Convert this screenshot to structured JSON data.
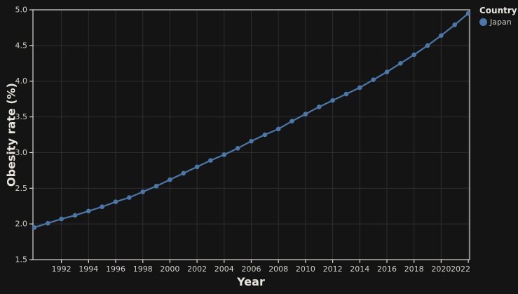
{
  "colors": {
    "background": "#141414",
    "grid": "#2e2e2e",
    "spine": "#dcd8d3",
    "tick_text": "#d2cfca",
    "label_text": "#e8e4de",
    "series_blue": "#4b77a9"
  },
  "chart_data": {
    "type": "line",
    "title": "",
    "xlabel": "Year",
    "ylabel": "Obesity rate (%)",
    "xlim": [
      1989.9,
      2022.1
    ],
    "ylim": [
      1.5,
      5.0
    ],
    "xticks": [
      1992,
      1994,
      1996,
      1998,
      2000,
      2002,
      2004,
      2006,
      2008,
      2010,
      2012,
      2014,
      2016,
      2018,
      2020,
      2022
    ],
    "yticks": [
      1.5,
      2.0,
      2.5,
      3.0,
      3.5,
      4.0,
      4.5,
      5.0
    ],
    "grid": true,
    "legend": {
      "title": "Country",
      "position": "top-right",
      "entries": [
        {
          "label": "Japan",
          "color": "#4b77a9"
        }
      ]
    },
    "series": [
      {
        "name": "Japan",
        "marker": "circle",
        "x": [
          1990,
          1991,
          1992,
          1993,
          1994,
          1995,
          1996,
          1997,
          1998,
          1999,
          2000,
          2001,
          2002,
          2003,
          2004,
          2005,
          2006,
          2007,
          2008,
          2009,
          2010,
          2011,
          2012,
          2013,
          2014,
          2015,
          2016,
          2017,
          2018,
          2019,
          2020,
          2021,
          2022
        ],
        "values": [
          1.95,
          2.01,
          2.07,
          2.12,
          2.18,
          2.24,
          2.31,
          2.37,
          2.45,
          2.53,
          2.62,
          2.71,
          2.8,
          2.89,
          2.97,
          3.06,
          3.16,
          3.25,
          3.33,
          3.44,
          3.54,
          3.64,
          3.73,
          3.82,
          3.91,
          4.02,
          4.13,
          4.25,
          4.37,
          4.5,
          4.64,
          4.79,
          4.95
        ]
      }
    ]
  }
}
